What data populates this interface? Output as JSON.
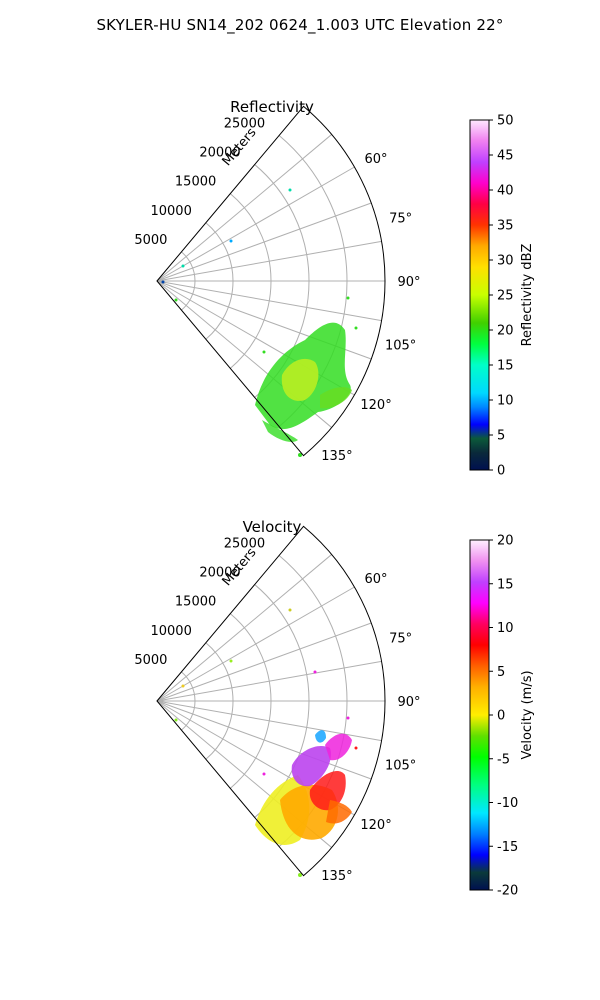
{
  "figure_title": "SKYLER-HU  SN14_202  0624_1.003 UTC Elevation 22°",
  "chart_data": [
    {
      "type": "polar-ppi",
      "title": "Reflectivity",
      "radial_label": "Meters",
      "range_ticks": [
        5000,
        10000,
        15000,
        20000,
        25000
      ],
      "azimuth_ticks": [
        "60°",
        "75°",
        "90°",
        "105°",
        "120°",
        "135°"
      ],
      "azimuth_range": [
        40,
        140
      ],
      "max_range": 30000,
      "colorbar": {
        "label": "Reflectivity dBZ",
        "min": 0,
        "max": 50,
        "ticks": [
          "0",
          "5",
          "10",
          "15",
          "20",
          "25",
          "30",
          "35",
          "40",
          "45",
          "50"
        ]
      }
    },
    {
      "type": "polar-ppi",
      "title": "Velocity",
      "radial_label": "Meters",
      "range_ticks": [
        5000,
        10000,
        15000,
        20000,
        25000
      ],
      "azimuth_ticks": [
        "60°",
        "75°",
        "90°",
        "105°",
        "120°",
        "135°"
      ],
      "azimuth_range": [
        40,
        140
      ],
      "max_range": 30000,
      "colorbar": {
        "label": "Velocity (m/s)",
        "min": -20,
        "max": 20,
        "ticks": [
          "-20",
          "-15",
          "-10",
          "-5",
          "0",
          "5",
          "10",
          "15",
          "20"
        ]
      }
    }
  ]
}
